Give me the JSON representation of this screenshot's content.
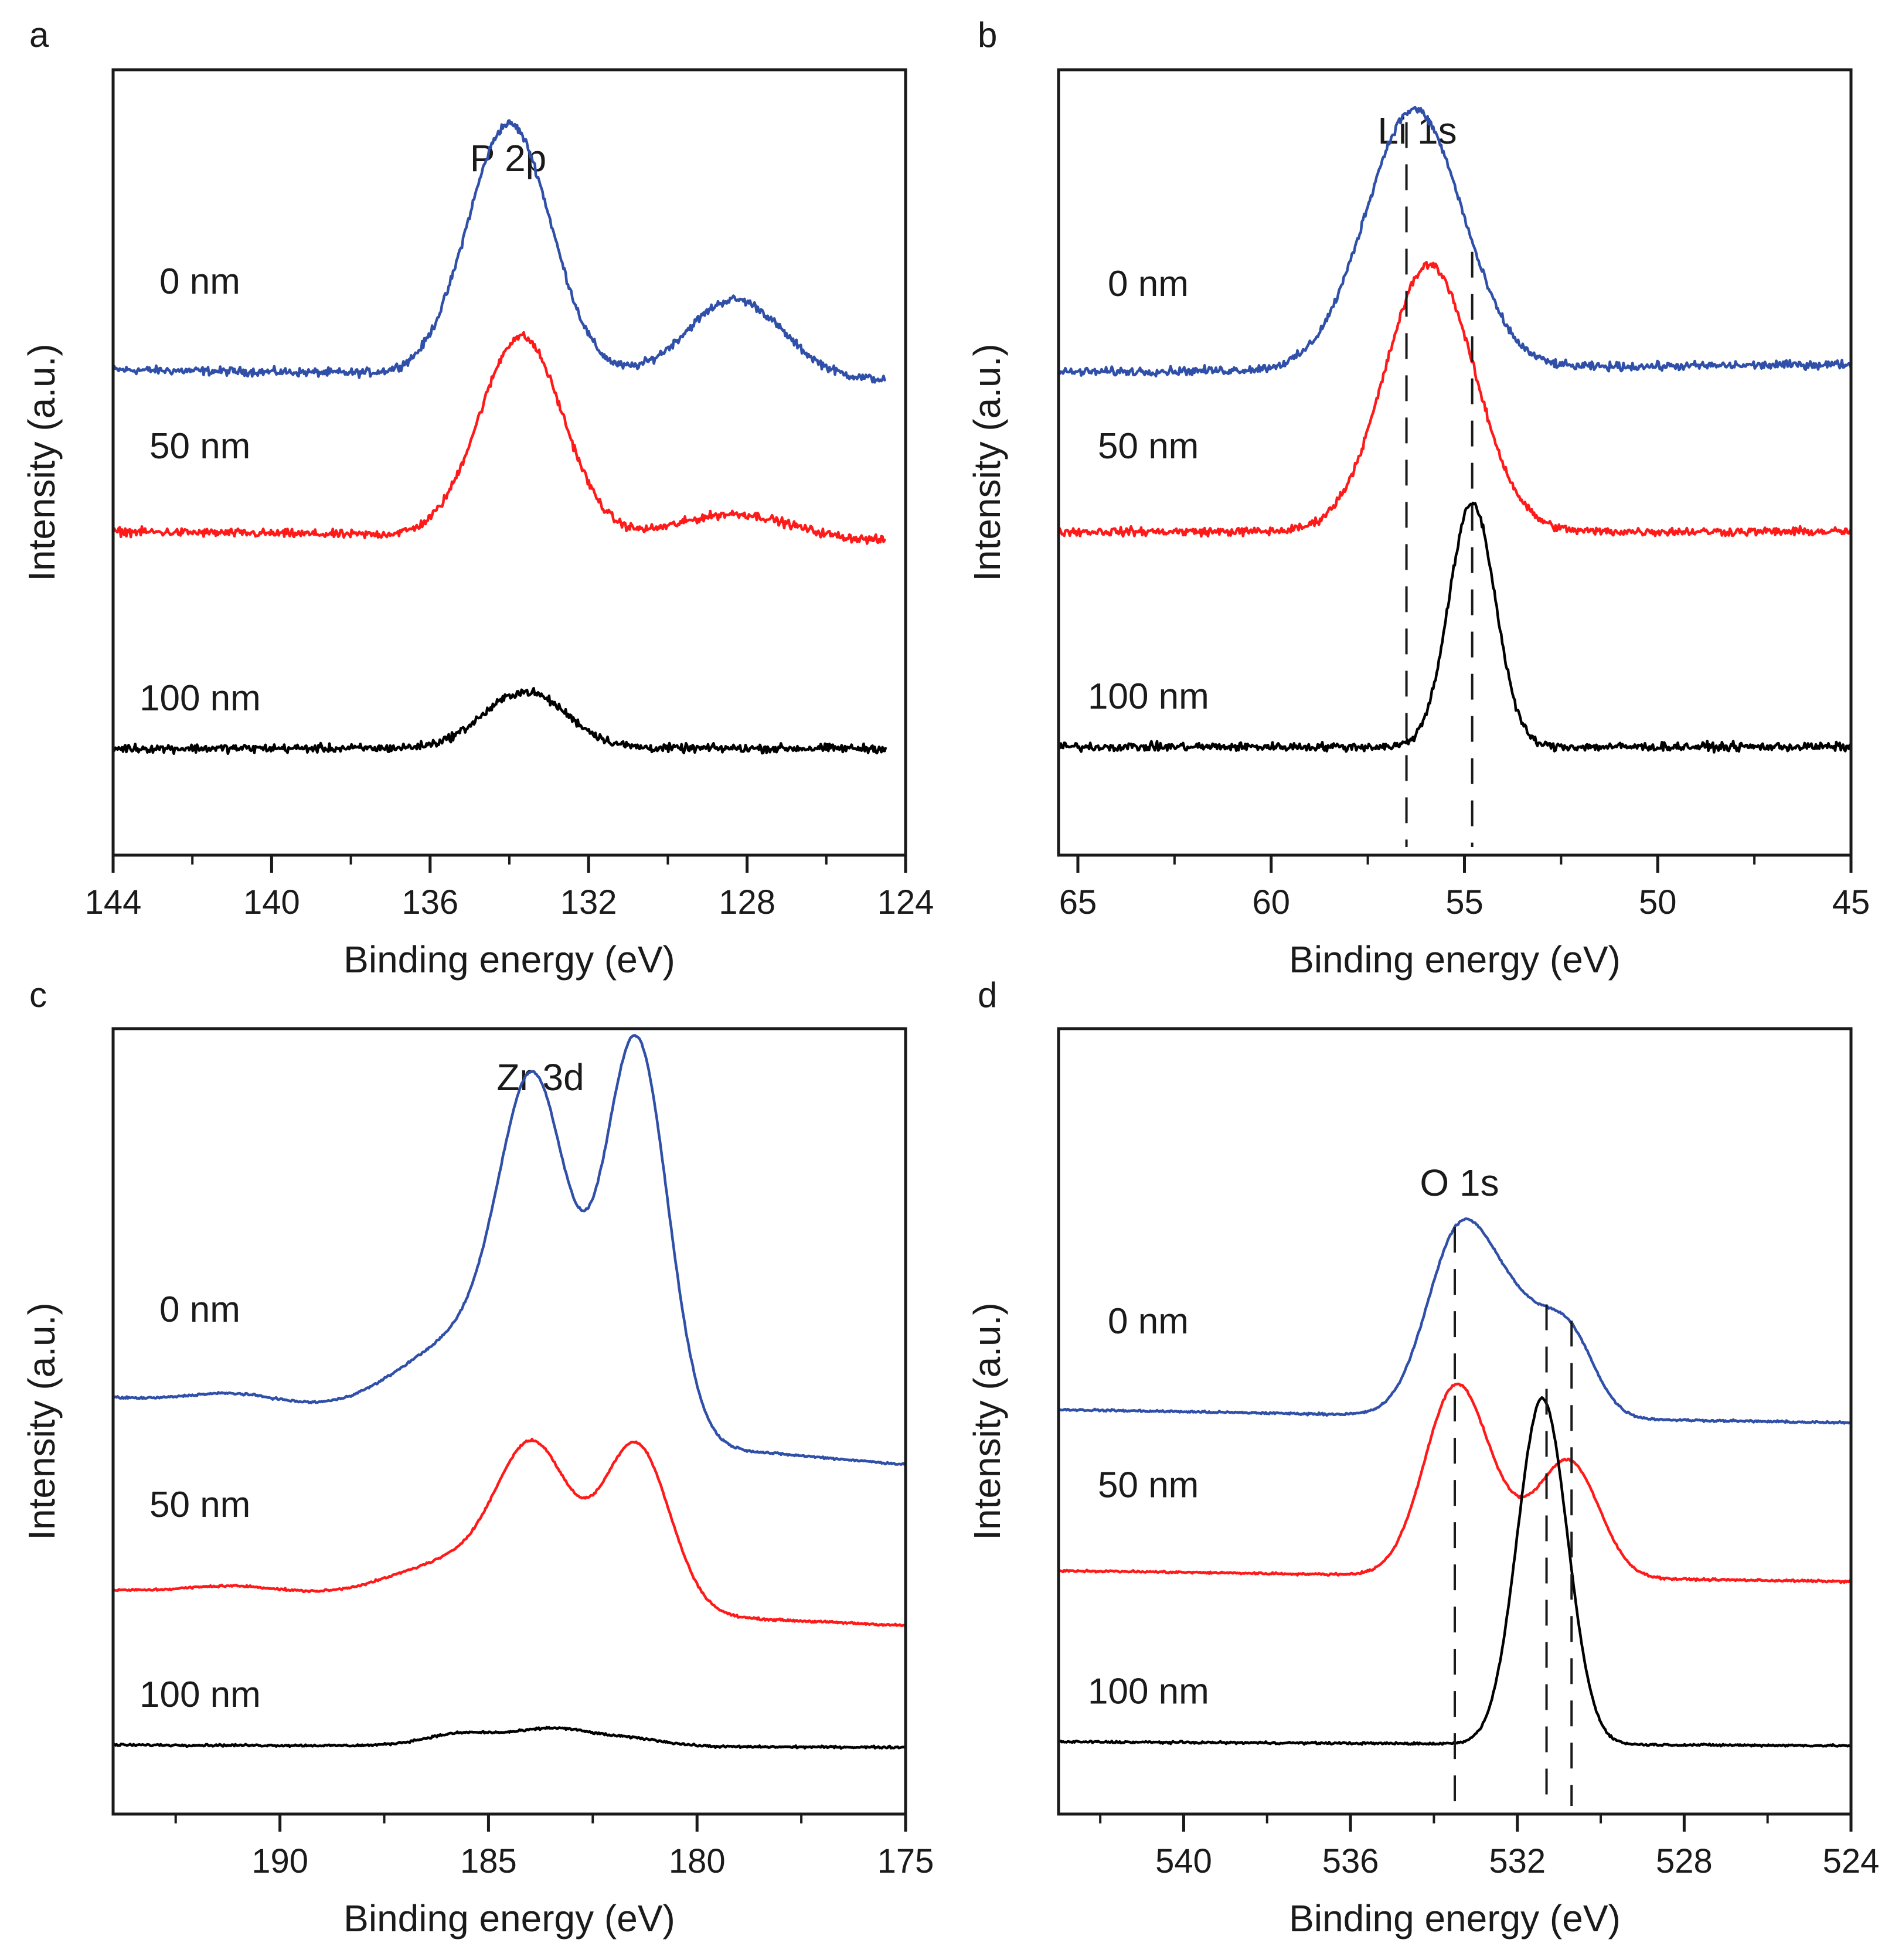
{
  "chart_data": [
    {
      "type": "line",
      "panel": "a",
      "title": "P 2p",
      "xlabel": "Binding energy (eV)",
      "ylabel": "Intensity (a.u.)",
      "xlim": [
        144,
        124
      ],
      "x_end": 124.5,
      "ylim": [
        0,
        1
      ],
      "xticks": [
        144,
        140,
        136,
        132,
        128,
        124
      ],
      "minor_xticks": [
        142,
        138,
        134,
        130,
        126
      ],
      "noise": 0.008,
      "series": [
        {
          "name": "0 nm",
          "color": "#2f4fa8",
          "baseline": 0.618,
          "end": 0.605,
          "peaks": [
            {
              "center": 134.0,
              "height": 0.32,
              "width": 1.05
            },
            {
              "center": 128.3,
              "height": 0.1,
              "width": 1.2
            }
          ]
        },
        {
          "name": "50 nm",
          "color": "#ff1a1a",
          "baseline": 0.412,
          "end": 0.4,
          "peaks": [
            {
              "center": 133.7,
              "height": 0.255,
              "width": 1.05
            },
            {
              "center": 128.3,
              "height": 0.032,
              "width": 1.4
            }
          ]
        },
        {
          "name": "100 nm",
          "color": "#000000",
          "baseline": 0.136,
          "end": 0.136,
          "peaks": [
            {
              "center": 133.6,
              "height": 0.072,
              "width": 1.05
            }
          ]
        }
      ],
      "reference_lines": []
    },
    {
      "type": "line",
      "panel": "b",
      "title": "Li 1s",
      "xlabel": "Binding energy (eV)",
      "ylabel": "Intensity (a.u.)",
      "xlim": [
        65.5,
        45
      ],
      "x_end": 45,
      "ylim": [
        0,
        1
      ],
      "xticks": [
        65,
        60,
        55,
        50,
        45
      ],
      "minor_xticks": [
        62.5,
        57.5,
        52.5,
        47.5
      ],
      "noise": 0.008,
      "series": [
        {
          "name": "0 nm",
          "color": "#2f4fa8",
          "baseline": 0.615,
          "end": 0.625,
          "peaks": [
            {
              "center": 56.3,
              "height": 0.33,
              "width": 1.25
            }
          ]
        },
        {
          "name": "50 nm",
          "color": "#ff1a1a",
          "baseline": 0.412,
          "end": 0.412,
          "peaks": [
            {
              "center": 55.9,
              "height": 0.34,
              "width": 1.15
            }
          ]
        },
        {
          "name": "100 nm",
          "color": "#000000",
          "baseline": 0.138,
          "end": 0.138,
          "peaks": [
            {
              "center": 54.8,
              "height": 0.31,
              "width": 0.6
            }
          ]
        }
      ],
      "reference_lines": [
        56.5,
        54.8
      ]
    },
    {
      "type": "line",
      "panel": "c",
      "title": "Zr 3d",
      "xlabel": "Binding energy (eV)",
      "ylabel": "Intensity (a.u.)",
      "xlim": [
        194,
        175
      ],
      "x_end": 175,
      "ylim": [
        0,
        1
      ],
      "xticks": [
        190,
        185,
        180,
        175
      ],
      "minor_xticks": [
        192.5,
        187.5,
        182.5,
        177.5
      ],
      "noise": 0.002,
      "series": [
        {
          "name": "0 nm",
          "color": "#2f4fa8",
          "baseline": 0.53,
          "end": 0.445,
          "peaks": [
            {
              "center": 183.9,
              "height": 0.365,
              "width": 0.8
            },
            {
              "center": 181.45,
              "height": 0.5,
              "width": 0.75
            },
            {
              "center": 191.0,
              "height": 0.018,
              "width": 1.2
            },
            {
              "center": 185.2,
              "height": 0.12,
              "width": 1.8
            }
          ]
        },
        {
          "name": "50 nm",
          "color": "#ff1a1a",
          "baseline": 0.285,
          "end": 0.24,
          "peaks": [
            {
              "center": 183.9,
              "height": 0.17,
              "width": 0.85
            },
            {
              "center": 181.45,
              "height": 0.21,
              "width": 0.8
            },
            {
              "center": 191.0,
              "height": 0.012,
              "width": 1.2
            },
            {
              "center": 185.4,
              "height": 0.06,
              "width": 1.8
            }
          ]
        },
        {
          "name": "100 nm",
          "color": "#000000",
          "baseline": 0.088,
          "end": 0.085,
          "peaks": [
            {
              "center": 185.6,
              "height": 0.016,
              "width": 0.9
            },
            {
              "center": 183.4,
              "height": 0.022,
              "width": 0.9
            },
            {
              "center": 181.5,
              "height": 0.009,
              "width": 0.8
            }
          ]
        }
      ],
      "reference_lines": []
    },
    {
      "type": "line",
      "panel": "d",
      "title": "O 1s",
      "xlabel": "Binding energy (eV)",
      "ylabel": "Intensity (a.u.)",
      "xlim": [
        543,
        524
      ],
      "x_end": 524,
      "ylim": [
        0,
        1
      ],
      "xticks": [
        540,
        536,
        532,
        528,
        524
      ],
      "minor_xticks": [
        542,
        538,
        534,
        530,
        526
      ],
      "noise": 0.002,
      "series": [
        {
          "name": "0 nm",
          "color": "#2f4fa8",
          "baseline": 0.515,
          "end": 0.498,
          "peaks": [
            {
              "center": 533.5,
              "height": 0.18,
              "width": 0.75
            },
            {
              "center": 532.2,
              "height": 0.14,
              "width": 1.0
            },
            {
              "center": 530.7,
              "height": 0.075,
              "width": 0.6
            }
          ]
        },
        {
          "name": "50 nm",
          "color": "#ff1a1a",
          "baseline": 0.31,
          "end": 0.296,
          "peaks": [
            {
              "center": 533.5,
              "height": 0.225,
              "width": 0.75
            },
            {
              "center": 532.1,
              "height": 0.05,
              "width": 1.0
            },
            {
              "center": 530.7,
              "height": 0.13,
              "width": 0.7
            }
          ]
        },
        {
          "name": "100 nm",
          "color": "#000000",
          "baseline": 0.092,
          "end": 0.087,
          "peaks": [
            {
              "center": 531.4,
              "height": 0.44,
              "width": 0.6
            }
          ]
        }
      ],
      "reference_lines": [
        533.5,
        531.3,
        530.7
      ]
    }
  ]
}
